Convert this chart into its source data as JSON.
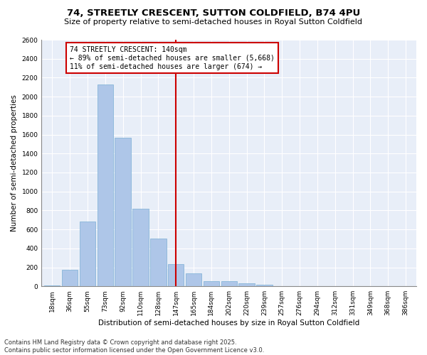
{
  "title": "74, STREETLY CRESCENT, SUTTON COLDFIELD, B74 4PU",
  "subtitle": "Size of property relative to semi-detached houses in Royal Sutton Coldfield",
  "xlabel": "Distribution of semi-detached houses by size in Royal Sutton Coldfield",
  "ylabel": "Number of semi-detached properties",
  "categories": [
    "18sqm",
    "36sqm",
    "55sqm",
    "73sqm",
    "92sqm",
    "110sqm",
    "128sqm",
    "147sqm",
    "165sqm",
    "184sqm",
    "202sqm",
    "220sqm",
    "239sqm",
    "257sqm",
    "276sqm",
    "294sqm",
    "312sqm",
    "331sqm",
    "349sqm",
    "368sqm",
    "386sqm"
  ],
  "values": [
    10,
    175,
    680,
    2130,
    1570,
    820,
    500,
    230,
    140,
    55,
    55,
    30,
    20,
    5,
    5,
    0,
    0,
    5,
    0,
    0,
    5
  ],
  "bar_color": "#aec6e8",
  "bar_edge_color": "#7aaed4",
  "vline_x_index": 7,
  "vline_color": "#cc0000",
  "annotation_title": "74 STREETLY CRESCENT: 140sqm",
  "annotation_line1": "← 89% of semi-detached houses are smaller (5,668)",
  "annotation_line2": "11% of semi-detached houses are larger (674) →",
  "annotation_box_color": "#ffffff",
  "annotation_box_edge": "#cc0000",
  "ylim": [
    0,
    2600
  ],
  "yticks": [
    0,
    200,
    400,
    600,
    800,
    1000,
    1200,
    1400,
    1600,
    1800,
    2000,
    2200,
    2400,
    2600
  ],
  "footer1": "Contains HM Land Registry data © Crown copyright and database right 2025.",
  "footer2": "Contains public sector information licensed under the Open Government Licence v3.0.",
  "bg_color": "#ffffff",
  "plot_bg_color": "#e8eef8",
  "title_fontsize": 9.5,
  "subtitle_fontsize": 8,
  "axis_label_fontsize": 7.5,
  "tick_fontsize": 6.5,
  "annotation_fontsize": 7,
  "footer_fontsize": 6
}
